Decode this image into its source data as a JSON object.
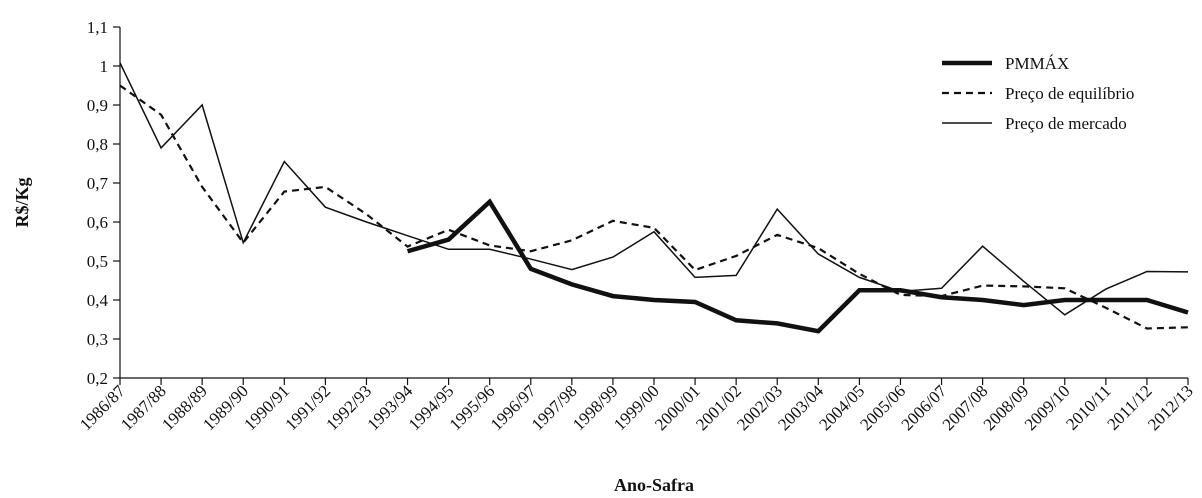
{
  "chart_data": {
    "type": "line",
    "title": "",
    "xlabel": "Ano-Safra",
    "ylabel": "R$/Kg",
    "ylim": [
      0.2,
      1.1
    ],
    "yticks": [
      "0,2",
      "0,3",
      "0,4",
      "0,5",
      "0,6",
      "0,7",
      "0,8",
      "0,9",
      "1",
      "1,1"
    ],
    "categories": [
      "1986/87",
      "1987/88",
      "1988/89",
      "1989/90",
      "1990/91",
      "1991/92",
      "1992/93",
      "1993/94",
      "1994/95",
      "1995/96",
      "1996/97",
      "1997/98",
      "1998/99",
      "1999/00",
      "2000/01",
      "2001/02",
      "2002/03",
      "2003/04",
      "2004/05",
      "2005/06",
      "2006/07",
      "2007/08",
      "2008/09",
      "2009/10",
      "2010/11",
      "2011/12",
      "2012/13"
    ],
    "grid": false,
    "legend_position": "top-right",
    "series": [
      {
        "name": "PMMÁX",
        "style": "thick-solid",
        "color": "#111111",
        "values": [
          null,
          null,
          null,
          null,
          null,
          null,
          null,
          0.525,
          0.555,
          0.652,
          0.48,
          0.44,
          0.41,
          0.4,
          0.395,
          0.348,
          0.34,
          0.32,
          0.425,
          0.425,
          0.407,
          0.4,
          0.387,
          0.4,
          0.4,
          0.4,
          0.368
        ]
      },
      {
        "name": "Preço de equilíbrio",
        "style": "dashed",
        "color": "#111111",
        "values": [
          0.95,
          0.875,
          0.69,
          0.547,
          0.678,
          0.69,
          0.62,
          0.537,
          0.58,
          0.54,
          0.525,
          0.553,
          0.603,
          0.585,
          0.477,
          0.513,
          0.567,
          0.533,
          0.467,
          0.413,
          0.41,
          0.437,
          0.435,
          0.43,
          0.38,
          0.327,
          0.33
        ]
      },
      {
        "name": "Preço de mercado",
        "style": "thin-solid",
        "color": "#111111",
        "values": [
          1.008,
          0.79,
          0.9,
          0.547,
          0.755,
          0.638,
          0.6,
          0.565,
          0.53,
          0.53,
          0.505,
          0.478,
          0.51,
          0.575,
          0.458,
          0.463,
          0.633,
          0.518,
          0.458,
          0.422,
          0.43,
          0.538,
          0.448,
          0.362,
          0.428,
          0.473,
          0.472
        ]
      }
    ]
  }
}
